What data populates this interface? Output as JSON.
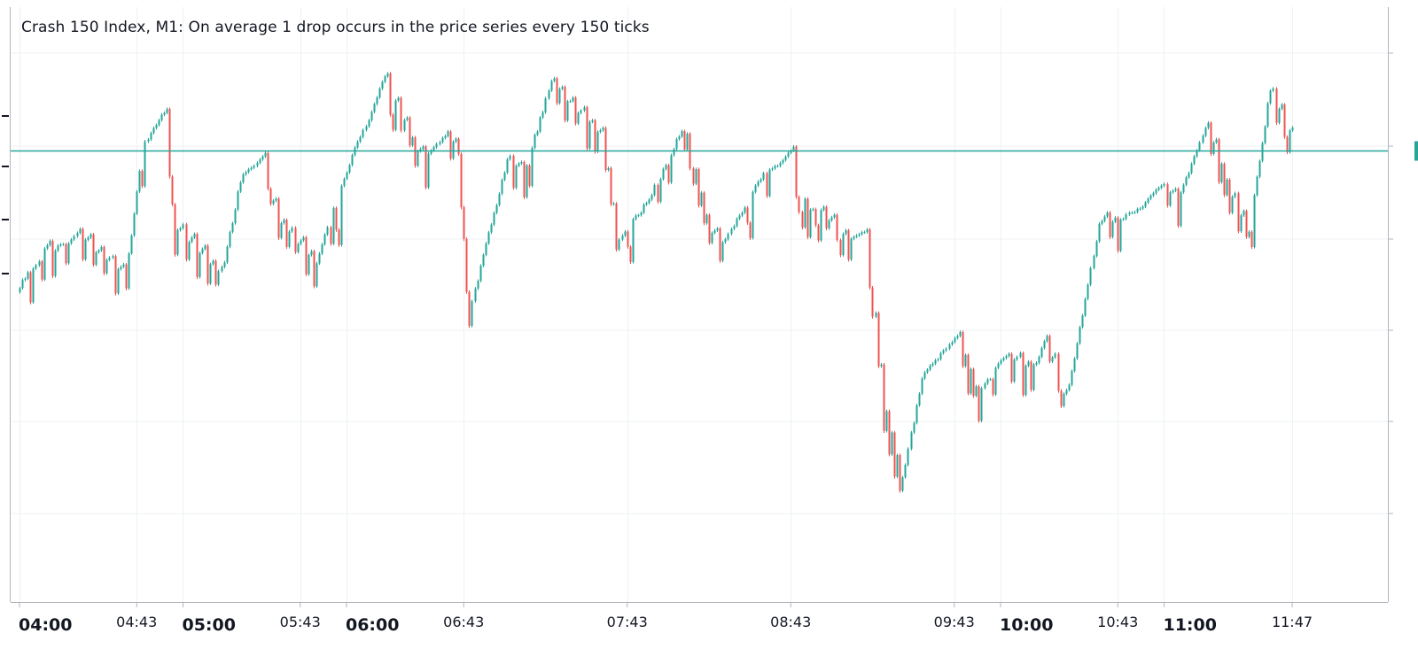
{
  "title": "Crash 150 Index, M1: On average 1 drop occurs in the price series every 150 ticks",
  "colors": {
    "up": "#26a69a",
    "down": "#ef5350",
    "price_line": "#26a69a",
    "grid": "#eef0f3",
    "axis": "#b2b5be"
  },
  "chart_data": {
    "type": "candlestick",
    "title": "Crash 150 Index, M1: On average 1 drop occurs in the price series every 150 ticks",
    "x_tick_labels": [
      {
        "label": "04:00",
        "style": "major"
      },
      {
        "label": "04:43",
        "style": "minor"
      },
      {
        "label": "05:00",
        "style": "major"
      },
      {
        "label": "05:43",
        "style": "minor"
      },
      {
        "label": "06:00",
        "style": "major"
      },
      {
        "label": "06:43",
        "style": "minor"
      },
      {
        "label": "07:43",
        "style": "minor"
      },
      {
        "label": "08:43",
        "style": "minor"
      },
      {
        "label": "09:43",
        "style": "minor"
      },
      {
        "label": "10:00",
        "style": "major"
      },
      {
        "label": "10:43",
        "style": "minor"
      },
      {
        "label": "11:00",
        "style": "major"
      },
      {
        "label": "11:47",
        "style": "minor"
      }
    ],
    "x_tick_minutes": [
      0,
      43,
      60,
      103,
      120,
      163,
      223,
      283,
      343,
      360,
      403,
      420,
      467
    ],
    "price_scale_note": "y-axis labels not visible; values in relative index points (0-100)",
    "ylim": [
      0,
      100
    ],
    "current_price_level": 80,
    "grid": true,
    "price_path_minutes": [
      0,
      10,
      25,
      40,
      46,
      55,
      58,
      75,
      82,
      90,
      96,
      110,
      118,
      135,
      140,
      148,
      162,
      166,
      180,
      186,
      196,
      215,
      221,
      232,
      245,
      255,
      260,
      275,
      285,
      290,
      295,
      305,
      312,
      318,
      325,
      332,
      345,
      353,
      364,
      372,
      378,
      385,
      397,
      404,
      413,
      420,
      426,
      437,
      445,
      452,
      460,
      470
    ],
    "price_path_values": [
      52,
      60,
      62,
      55,
      80,
      88,
      65,
      55,
      74,
      79,
      66,
      57,
      72,
      94,
      88,
      78,
      82,
      48,
      78,
      75,
      93,
      82,
      62,
      70,
      85,
      63,
      62,
      76,
      78,
      68,
      68,
      62,
      64,
      30,
      15,
      35,
      43,
      32,
      40,
      36,
      43,
      30,
      65,
      66,
      68,
      72,
      70,
      85,
      72,
      64,
      92,
      80
    ]
  }
}
